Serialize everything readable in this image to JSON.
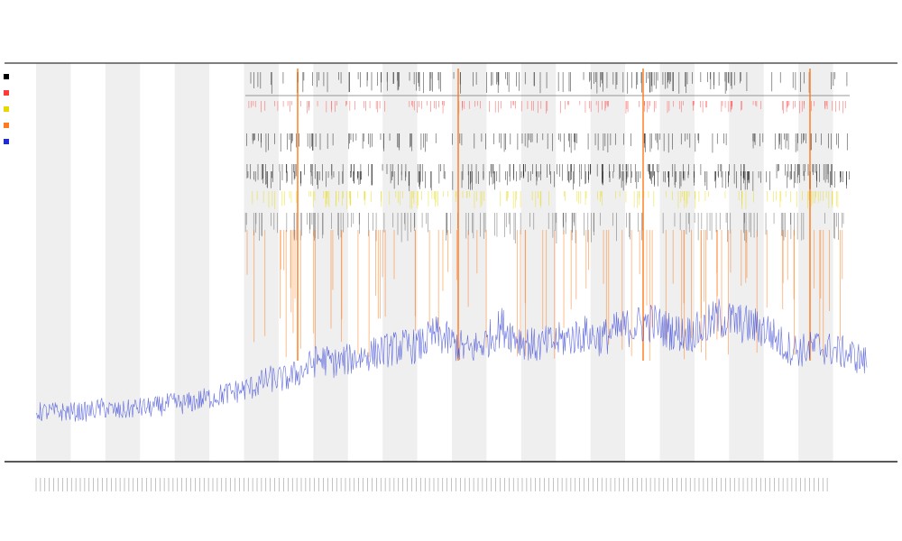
{
  "chart_data": {
    "type": "line",
    "title": "",
    "subtitle_1": "",
    "subtitle_2": "",
    "xlabel": "",
    "ylabel": "",
    "grid": false,
    "background_bands": 12,
    "legend": {
      "placement": "left",
      "entries": [
        {
          "name": "",
          "color": "#000000"
        },
        {
          "name": "",
          "color": "#ff3b3b"
        },
        {
          "name": "",
          "color": "#e7d900"
        },
        {
          "name": "",
          "color": "#ff7a1a"
        },
        {
          "name": "",
          "color": "#1f2dcc"
        }
      ]
    },
    "xlim": [
      0,
      1000
    ],
    "ylim": [
      0,
      1
    ],
    "series": [
      {
        "name": "",
        "color": "#3340d6",
        "x": [
          0,
          20,
          40,
          60,
          80,
          100,
          120,
          140,
          160,
          180,
          200,
          220,
          240,
          260,
          280,
          300,
          320,
          340,
          360,
          380,
          400,
          420,
          440,
          460,
          480,
          500,
          520,
          540,
          560,
          580,
          600,
          620,
          640,
          660,
          680,
          700,
          720,
          740,
          760,
          780,
          800,
          820,
          840,
          860,
          880,
          900,
          920,
          940,
          960,
          980,
          1000
        ],
        "values": [
          0.12,
          0.12,
          0.12,
          0.12,
          0.13,
          0.12,
          0.13,
          0.13,
          0.14,
          0.14,
          0.15,
          0.16,
          0.17,
          0.18,
          0.2,
          0.2,
          0.22,
          0.25,
          0.24,
          0.25,
          0.26,
          0.27,
          0.28,
          0.28,
          0.31,
          0.29,
          0.27,
          0.29,
          0.33,
          0.3,
          0.28,
          0.29,
          0.3,
          0.31,
          0.3,
          0.32,
          0.33,
          0.34,
          0.32,
          0.31,
          0.32,
          0.35,
          0.34,
          0.33,
          0.32,
          0.28,
          0.27,
          0.28,
          0.27,
          0.26,
          0.24
        ]
      }
    ],
    "event_rows": [
      {
        "name": "",
        "color": "#000000",
        "row": 1
      },
      {
        "name": "",
        "color": "#ff3b3b",
        "row": 2
      },
      {
        "name": "",
        "color": "#000000",
        "row": 3
      },
      {
        "name": "",
        "color": "#000000",
        "row": 4
      },
      {
        "name": "",
        "color": "#000000",
        "row": 5
      },
      {
        "name": "",
        "color": "#e7d900",
        "row": 6
      },
      {
        "name": "",
        "color": "#555555",
        "row": 7
      },
      {
        "name": "",
        "color": "#ff7a1a",
        "row": 8
      }
    ],
    "tick_labels": []
  }
}
